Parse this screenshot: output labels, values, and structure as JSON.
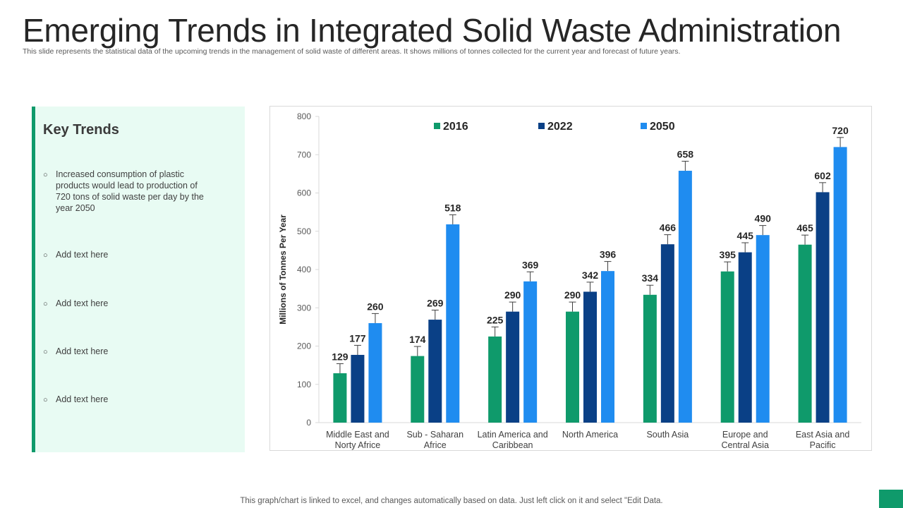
{
  "page": {
    "title": "Emerging Trends in Integrated Solid Waste Administration",
    "subtitle": "This slide represents the statistical data of the upcoming trends in the management of solid waste of different areas. It shows millions of tonnes collected for the current year and forecast of future years.",
    "footer": "This graph/chart is linked to excel, and changes automatically based on data. Just left click on it and select \"Edit Data.",
    "accent_color": "#0f9a6b"
  },
  "panel": {
    "title": "Key Trends",
    "items": [
      "Increased consumption of plastic products would lead to production of 720 tons of solid waste per day by the year 2050",
      "Add text here",
      "Add text here",
      "Add text here",
      "Add text here"
    ]
  },
  "chart_data": {
    "type": "bar",
    "title": "",
    "xlabel": "",
    "ylabel": "Millions of Tonnes  Per Year",
    "ylim": [
      0,
      800
    ],
    "yticks": [
      0,
      100,
      200,
      300,
      400,
      500,
      600,
      700,
      800
    ],
    "legend_position": "top",
    "error_bars": true,
    "categories": [
      [
        "Middle East and",
        "Norty Africe"
      ],
      [
        "Sub - Saharan",
        "Africe"
      ],
      [
        "Latin America and",
        "Caribbean"
      ],
      [
        "North America"
      ],
      [
        "South Asia"
      ],
      [
        "Europe and",
        "Central Asia"
      ],
      [
        "East Asia and",
        "Pacific"
      ]
    ],
    "series": [
      {
        "name": "2016",
        "color": "#0f9a6b",
        "values": [
          129,
          174,
          225,
          290,
          334,
          395,
          465
        ]
      },
      {
        "name": "2022",
        "color": "#0a4086",
        "values": [
          177,
          269,
          290,
          342,
          466,
          445,
          602
        ]
      },
      {
        "name": "2050",
        "color": "#1f8cf0",
        "values": [
          260,
          518,
          369,
          396,
          658,
          490,
          720
        ]
      }
    ]
  }
}
